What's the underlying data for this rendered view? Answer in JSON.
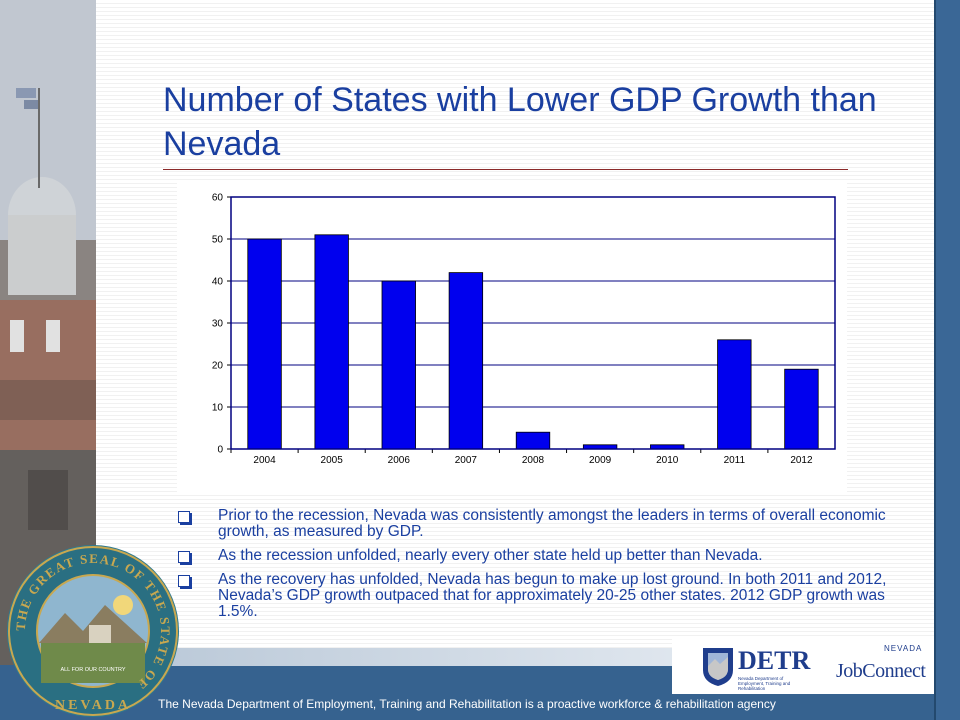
{
  "title": "Number of States with Lower GDP Growth than Nevada",
  "chart_data": {
    "type": "bar",
    "categories": [
      "2004",
      "2005",
      "2006",
      "2007",
      "2008",
      "2009",
      "2010",
      "2011",
      "2012"
    ],
    "values": [
      50,
      51,
      40,
      42,
      4,
      1,
      1,
      26,
      19
    ],
    "ylim": [
      0,
      60
    ],
    "yticks": [
      0,
      10,
      20,
      30,
      40,
      50,
      60
    ],
    "grid": true,
    "legend": "none",
    "colors": {
      "bar": "#0000ee",
      "plot_border": "#000080",
      "grid": "#000080"
    }
  },
  "bullets": [
    "Prior to the recession, Nevada was consistently amongst the leaders in terms of overall economic growth, as measured by GDP.",
    "As the recession unfolded, nearly every other state held up better than Nevada.",
    "As the recovery has unfolded, Nevada has begun to make up lost ground.  In both 2011 and 2012, Nevada’s GDP growth outpaced that for approximately 20-25 other states.  2012 GDP growth was 1.5%."
  ],
  "seal": {
    "ring_text": "THE GREAT SEAL OF THE STATE OF",
    "motto": "ALL FOR OUR COUNTRY",
    "state": "NEVADA"
  },
  "logos": {
    "detr_name": "DETR",
    "detr_subtitle": "Nevada Department of Employment, Training and Rehabilitation",
    "jobconnect_state": "NEVADA",
    "jobconnect_name": "JobConnect"
  },
  "footer": "The Nevada Department of Employment, Training and Rehabilitation is a proactive workforce & rehabilitation agency"
}
